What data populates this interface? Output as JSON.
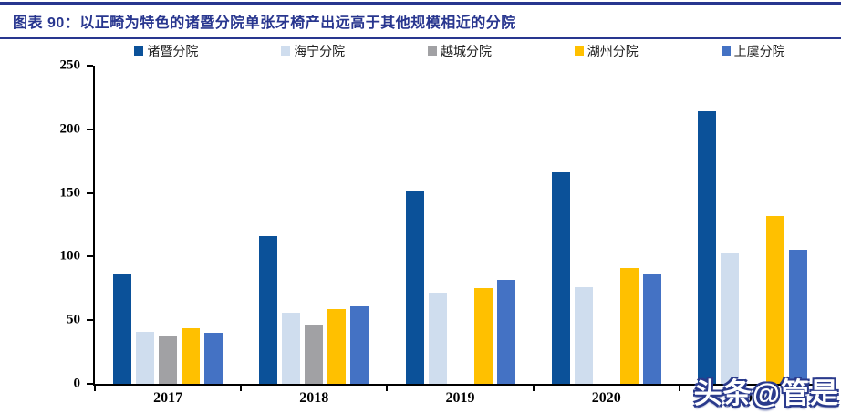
{
  "header": {
    "title": "图表 90：以正畸为特色的诸暨分院单张牙椅产出远高于其他规模相近的分院"
  },
  "watermark": {
    "text": "头条@管是"
  },
  "colors": {
    "title_navy": "#28368F",
    "axis_black": "#000000",
    "watermark_fill": "#FFFFFF",
    "watermark_outline": "#2A3A8C"
  },
  "chart_data": {
    "type": "bar",
    "title": "以正畸为特色的诸暨分院单张牙椅产出远高于其他规模相近的分院",
    "categories": [
      "2017",
      "2018",
      "2019",
      "2020",
      "2021"
    ],
    "series": [
      {
        "name": "诸暨分院",
        "color": "#0B5199",
        "values": [
          87,
          116,
          152,
          166,
          214
        ]
      },
      {
        "name": "海宁分院",
        "color": "#CFDDEE",
        "values": [
          41,
          56,
          72,
          76,
          103
        ]
      },
      {
        "name": "越城分院",
        "color": "#A1A1A4",
        "values": [
          37,
          46,
          null,
          null,
          null
        ]
      },
      {
        "name": "湖州分院",
        "color": "#FFC000",
        "values": [
          44,
          59,
          75,
          91,
          132
        ]
      },
      {
        "name": "上虞分院",
        "color": "#4472C4",
        "values": [
          40,
          61,
          82,
          86,
          105
        ]
      }
    ],
    "xlabel": "",
    "ylabel": "",
    "ylim": [
      0,
      250
    ],
    "yticks": [
      0,
      50,
      100,
      150,
      200,
      250
    ],
    "grid": false,
    "legend_position": "top"
  }
}
